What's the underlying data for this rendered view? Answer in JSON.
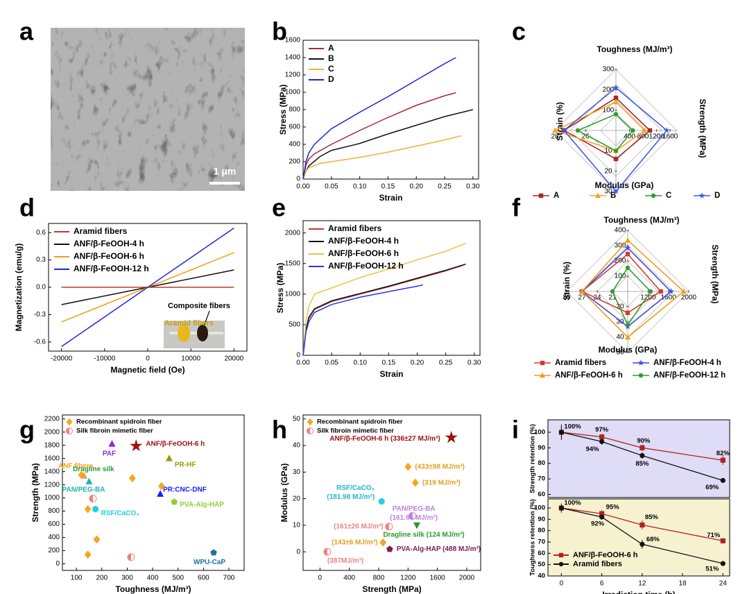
{
  "panel_labels": [
    "a",
    "b",
    "c",
    "d",
    "e",
    "f",
    "g",
    "h",
    "i"
  ],
  "panel_a": {
    "scale_bar": "1 μm"
  },
  "chart_data": [
    {
      "type": "line",
      "x_label": "Strain",
      "y_label": "Stress (MPa)",
      "xlim": [
        0,
        0.31
      ],
      "ylim": [
        0,
        1600
      ],
      "xticks": [
        {
          "value": 0,
          "label": "0.00"
        },
        0.05,
        {
          "value": 0.1,
          "label": "0.10"
        },
        0.15,
        {
          "value": 0.2,
          "label": "0.20"
        },
        0.25,
        {
          "value": 0.3,
          "label": "0.30"
        }
      ],
      "yticks": [
        0,
        200,
        400,
        600,
        800,
        1000,
        1200,
        1400,
        1600
      ],
      "legend": "upper left",
      "series": [
        {
          "name": "A",
          "color": "#a52a2a",
          "x": [
            0,
            0.005,
            0.01,
            0.02,
            0.05,
            0.1,
            0.15,
            0.2,
            0.25,
            0.27
          ],
          "values": [
            0,
            160,
            230,
            290,
            400,
            560,
            710,
            850,
            960,
            995
          ]
        },
        {
          "name": "B",
          "color": "#111111",
          "x": [
            0,
            0.005,
            0.01,
            0.03,
            0.05,
            0.1,
            0.15,
            0.2,
            0.25,
            0.3
          ],
          "values": [
            0,
            90,
            150,
            260,
            330,
            410,
            520,
            620,
            720,
            800
          ]
        },
        {
          "name": "C",
          "color": "#f2b134",
          "x": [
            0,
            0.005,
            0.01,
            0.03,
            0.05,
            0.1,
            0.15,
            0.2,
            0.25,
            0.28
          ],
          "values": [
            0,
            90,
            130,
            180,
            200,
            250,
            310,
            380,
            450,
            500
          ]
        },
        {
          "name": "D",
          "color": "#1f1fe0",
          "x": [
            0,
            0.005,
            0.01,
            0.02,
            0.05,
            0.1,
            0.15,
            0.2,
            0.25,
            0.27
          ],
          "values": [
            0,
            200,
            300,
            400,
            580,
            770,
            950,
            1140,
            1330,
            1400
          ]
        }
      ]
    },
    {
      "type": "radar",
      "axes": [
        {
          "label": "Toughness (MJ/m³)",
          "lim": [
            0,
            300
          ],
          "ticks": [
            100,
            200,
            300
          ]
        },
        {
          "label": "Strength (MPa)",
          "lim": [
            0,
            1800
          ],
          "ticks": [
            400,
            800,
            1200,
            1600
          ]
        },
        {
          "label": "Modulus (GPa)",
          "lim": [
            0,
            30
          ],
          "ticks": [
            10,
            20,
            30
          ]
        },
        {
          "label": "Strain (%)",
          "lim": [
            24,
            28
          ],
          "ticks": [
            26,
            28
          ]
        }
      ],
      "series": [
        {
          "name": "A",
          "color": "#a52a2a",
          "marker": "square",
          "values": [
            160,
            1000,
            14,
            27.4
          ]
        },
        {
          "name": "B",
          "color": "#f5a623",
          "marker": "triangle",
          "values": [
            140,
            850,
            10,
            28
          ]
        },
        {
          "name": "C",
          "color": "#2e9e2e",
          "marker": "circle",
          "values": [
            80,
            500,
            10,
            26.5
          ]
        },
        {
          "name": "D",
          "color": "#3a5ae8",
          "marker": "star",
          "values": [
            210,
            1500,
            30,
            27.4
          ]
        }
      ]
    },
    {
      "type": "line",
      "x_label": "Magnetic field (Oe)",
      "y_label": "Magnetization (emu/g)",
      "xlim": [
        -23000,
        23000
      ],
      "ylim": [
        -0.7,
        0.7
      ],
      "xticks": [
        -20000,
        -10000,
        0,
        10000,
        20000
      ],
      "yticks": [
        -0.6,
        -0.3,
        {
          "value": 0,
          "label": "0.0"
        },
        0.3,
        0.6
      ],
      "legend": "upper left",
      "annotations": [
        "Composite fibers",
        "Aramid fibers"
      ],
      "series": [
        {
          "name": "Aramid fibers",
          "color": "#c0392b",
          "x": [
            -20000,
            20000
          ],
          "values": [
            0,
            0
          ]
        },
        {
          "name": "ANF/β-FeOOH-4 h",
          "color": "#111111",
          "x": [
            -20000,
            20000
          ],
          "values": [
            -0.19,
            0.19
          ]
        },
        {
          "name": "ANF/β-FeOOH-6 h",
          "color": "#f39c12",
          "x": [
            -20000,
            20000
          ],
          "values": [
            -0.38,
            0.38
          ]
        },
        {
          "name": "ANF/β-FeOOH-12 h",
          "color": "#2222dd",
          "x": [
            -20000,
            20000
          ],
          "values": [
            -0.65,
            0.65
          ]
        }
      ]
    },
    {
      "type": "line",
      "x_label": "Strain",
      "y_label": "Stress (MPa)",
      "xlim": [
        0,
        0.31
      ],
      "ylim": [
        0,
        2200
      ],
      "xticks": [
        {
          "value": 0,
          "label": "0.00"
        },
        0.05,
        {
          "value": 0.1,
          "label": "0.10"
        },
        0.15,
        {
          "value": 0.2,
          "label": "0.20"
        },
        0.25,
        {
          "value": 0.3,
          "label": "0.30"
        }
      ],
      "yticks": [
        0,
        500,
        1000,
        1500,
        2000
      ],
      "legend": "upper left",
      "series": [
        {
          "name": "Aramid fibers",
          "color": "#c0392b",
          "x": [
            0,
            0.005,
            0.01,
            0.02,
            0.05,
            0.1,
            0.15,
            0.2,
            0.25,
            0.28
          ],
          "values": [
            0,
            400,
            600,
            750,
            880,
            1000,
            1120,
            1250,
            1380,
            1470
          ]
        },
        {
          "name": "ANF/β-FeOOH-4 h",
          "color": "#111111",
          "x": [
            0,
            0.005,
            0.01,
            0.02,
            0.05,
            0.1,
            0.15,
            0.2,
            0.25,
            0.285
          ],
          "values": [
            0,
            420,
            620,
            760,
            890,
            1010,
            1130,
            1260,
            1390,
            1490
          ]
        },
        {
          "name": "ANF/β-FeOOH-6 h",
          "color": "#f0c040",
          "x": [
            0,
            0.005,
            0.01,
            0.02,
            0.05,
            0.1,
            0.15,
            0.2,
            0.25,
            0.285
          ],
          "values": [
            0,
            550,
            800,
            1000,
            1100,
            1270,
            1410,
            1560,
            1700,
            1830
          ]
        },
        {
          "name": "ANF/β-FeOOH-12 h",
          "color": "#2233ee",
          "x": [
            0,
            0.005,
            0.01,
            0.02,
            0.05,
            0.1,
            0.15,
            0.2,
            0.21
          ],
          "values": [
            0,
            380,
            550,
            700,
            830,
            950,
            1040,
            1130,
            1150
          ]
        }
      ]
    },
    {
      "type": "radar",
      "axes": [
        {
          "label": "Toughness (MJ/m³)",
          "lim": [
            0,
            400
          ],
          "ticks": [
            100,
            200,
            300,
            400
          ]
        },
        {
          "label": "Strength (MPa)",
          "lim": [
            800,
            2000
          ],
          "ticks": [
            1200,
            1600,
            2000
          ]
        },
        {
          "label": "Modulus (GPa)",
          "lim": [
            10,
            50
          ],
          "ticks": [
            20,
            30,
            40,
            50
          ]
        },
        {
          "label": "Strain (%)",
          "lim": [
            18,
            30
          ],
          "ticks": [
            21,
            24,
            27,
            30
          ]
        }
      ],
      "series": [
        {
          "name": "Aramid fibers",
          "color": "#d63a2f",
          "marker": "square",
          "values": [
            245,
            1450,
            24,
            27
          ]
        },
        {
          "name": "ANF/β-FeOOH-4 h",
          "color": "#3a4ae8",
          "marker": "star",
          "values": [
            285,
            1650,
            33,
            27
          ]
        },
        {
          "name": "ANF/β-FeOOH-6 h",
          "color": "#f39c12",
          "marker": "triangle",
          "values": [
            335,
            1900,
            40,
            27
          ]
        },
        {
          "name": "ANF/β-FeOOH-12 h",
          "color": "#2e9e2e",
          "marker": "circle",
          "values": [
            155,
            1250,
            32,
            21
          ]
        }
      ]
    },
    {
      "type": "scatter",
      "x_label": "Toughness (MJ/m³)",
      "y_label": "Strength (MPa)",
      "xlim": [
        45,
        760
      ],
      "ylim": [
        -100,
        2260
      ],
      "xticks": [
        100,
        200,
        300,
        400,
        500,
        600,
        700
      ],
      "yticks": [
        0,
        200,
        400,
        600,
        800,
        1000,
        1200,
        1400,
        1600,
        1800,
        2000,
        2200
      ],
      "legend": [
        {
          "label": "Recombinant spidroin fiber",
          "marker": "diamond",
          "color": "#f5a623"
        },
        {
          "label": "Silk fibroin mimetic fiber",
          "marker": "half-circle",
          "color": "#f08080"
        }
      ],
      "points": [
        {
          "x": 335,
          "y": 1790,
          "marker": "star",
          "color": "#a01010",
          "label": "ANF/β-FeOOH-6 h"
        },
        {
          "x": 240,
          "y": 1820,
          "marker": "triangle",
          "color": "#8a2be2",
          "label": "PAF"
        },
        {
          "x": 465,
          "y": 1600,
          "marker": "triangle",
          "color": "#9a9a10",
          "label": "PR-HF"
        },
        {
          "x": 130,
          "y": 1335,
          "marker": "triangle",
          "color": "#e9967a",
          "label": "ANF fibers",
          "label_color": "#f5a020"
        },
        {
          "x": 320,
          "y": 1300,
          "marker": "diamond",
          "color": "#f5a623",
          "label": "Dragline silk",
          "label_color": "#2a9a2a"
        },
        {
          "x": 150,
          "y": 1250,
          "marker": "triangle",
          "color": "#20b2aa",
          "label": "PAN/PEG-BA"
        },
        {
          "x": 430,
          "y": 1060,
          "marker": "triangle",
          "color": "#1a1aff",
          "label": "PR:CNC-DNF"
        },
        {
          "x": 175,
          "y": 830,
          "marker": "hexagon",
          "color": "#20d0e0",
          "label": "RSF/CaCO₃"
        },
        {
          "x": 485,
          "y": 940,
          "marker": "pentagon",
          "color": "#90d030",
          "label": "PVA-Alg-HAP"
        },
        {
          "x": 640,
          "y": 170,
          "marker": "pentagon",
          "color": "#2070a0",
          "label": "WPU-CaP"
        },
        {
          "x": 120,
          "y": 1350,
          "marker": "diamond",
          "color": "#f5a623"
        },
        {
          "x": 145,
          "y": 830,
          "marker": "diamond",
          "color": "#f5a623"
        },
        {
          "x": 180,
          "y": 370,
          "marker": "diamond",
          "color": "#f5a623"
        },
        {
          "x": 145,
          "y": 140,
          "marker": "diamond",
          "color": "#f5a623"
        },
        {
          "x": 435,
          "y": 1180,
          "marker": "diamond",
          "color": "#f5a623"
        },
        {
          "x": 165,
          "y": 990,
          "marker": "half-circle",
          "color": "#f08080"
        },
        {
          "x": 315,
          "y": 100,
          "marker": "half-circle",
          "color": "#f08080"
        }
      ]
    },
    {
      "type": "scatter",
      "x_label": "Strength (MPa)",
      "y_label": "Modulus (GPa)",
      "xlim": [
        -230,
        2190
      ],
      "ylim": [
        -7,
        51.5
      ],
      "xticks": [
        0,
        400,
        800,
        1200,
        1600,
        2000
      ],
      "yticks": [
        0,
        10,
        20,
        30,
        40,
        50
      ],
      "legend": [
        {
          "label": "Recombinant spidroin fiber",
          "marker": "diamond",
          "color": "#f5a623"
        },
        {
          "label": "Silk fibroin mimetic fiber",
          "marker": "half-circle",
          "color": "#f08080"
        }
      ],
      "points": [
        {
          "x": 1790,
          "y": 43,
          "marker": "star",
          "color": "#a01010",
          "label": "ANF/β-FeOOH-6 h (336±27 MJ/m³)"
        },
        {
          "x": 1200,
          "y": 32,
          "marker": "diamond",
          "color": "#f5a623",
          "label": "(433±98 MJ/m³)",
          "label_color": "#e0a020"
        },
        {
          "x": 1300,
          "y": 26,
          "marker": "diamond",
          "color": "#f5a623",
          "label": "(319 MJ/m³)",
          "label_color": "#e0a020"
        },
        {
          "x": 840,
          "y": 19,
          "marker": "hexagon",
          "color": "#20d0e0",
          "label": "RSF/CaCO₃",
          "label2": "(181.98 MJ/m³)",
          "label_color": "#20b8c8"
        },
        {
          "x": 1260,
          "y": 13.5,
          "marker": "half-circle",
          "color": "#c080e0",
          "label": "PAN/PEG-BA",
          "label2": "(161.66 MJ/m³)"
        },
        {
          "x": 940,
          "y": 9.5,
          "marker": "half-circle",
          "color": "#f08080",
          "label": "(161±26 MJ/m³)"
        },
        {
          "x": 1320,
          "y": 10,
          "marker": "triangle-down",
          "color": "#2a9a2a",
          "label": "Dragline silk (124 MJ/m³)"
        },
        {
          "x": 860,
          "y": 3.5,
          "marker": "diamond",
          "color": "#f5a623",
          "label": "(143±6 MJ/m³)",
          "label_color": "#e0a020"
        },
        {
          "x": 950,
          "y": 1,
          "marker": "pentagon",
          "color": "#7a2050",
          "label": "PVA-Alg-HAP (488 MJ/m³)"
        },
        {
          "x": 100,
          "y": 0,
          "marker": "half-circle",
          "color": "#f08080",
          "label": "(387MJ/m³)"
        }
      ]
    },
    {
      "type": "line",
      "y_label": "Strength retention (%)",
      "xlim": [
        -2,
        25
      ],
      "ylim": [
        58,
        108
      ],
      "yticks": [
        60,
        70,
        80,
        90,
        100
      ],
      "x": [
        0,
        6,
        12,
        24
      ],
      "series": [
        {
          "name": "ANF/β-FeOOH-6 h",
          "color": "#b22222",
          "marker": "square",
          "values": [
            100,
            97,
            90,
            82
          ],
          "errors": [
            4,
            2,
            2,
            3
          ],
          "value_labels": [
            "100%",
            "97%",
            "90%",
            "82%"
          ]
        },
        {
          "name": "Aramid fibers",
          "color": "#111111",
          "marker": "circle",
          "values": [
            100,
            94,
            85,
            69
          ],
          "errors": [
            5,
            2,
            2,
            1
          ],
          "value_labels": [
            null,
            "94%",
            "85%",
            "69%"
          ]
        }
      ]
    },
    {
      "type": "line",
      "x_label": "Irradiation time (h)",
      "y_label": "Toughness retention (%)",
      "xlim": [
        -2,
        25
      ],
      "ylim": [
        40,
        108
      ],
      "xticks": [
        0,
        6,
        12,
        18,
        24
      ],
      "yticks": [
        40,
        50,
        60,
        70,
        80,
        90,
        100
      ],
      "x": [
        0,
        6,
        12,
        24
      ],
      "legend": "lower left",
      "series": [
        {
          "name": "ANF/β-FeOOH-6 h",
          "color": "#b22222",
          "marker": "square",
          "values": [
            100,
            95,
            85,
            71
          ],
          "errors": [
            4,
            3,
            4,
            1
          ],
          "value_labels": [
            "100%",
            "95%",
            "85%",
            "71%"
          ]
        },
        {
          "name": "Aramid fibers",
          "color": "#111111",
          "marker": "circle",
          "values": [
            100,
            92,
            68,
            51
          ],
          "errors": [
            4,
            2,
            4,
            1
          ],
          "value_labels": [
            null,
            "92%",
            "68%",
            "51%"
          ]
        }
      ]
    }
  ]
}
